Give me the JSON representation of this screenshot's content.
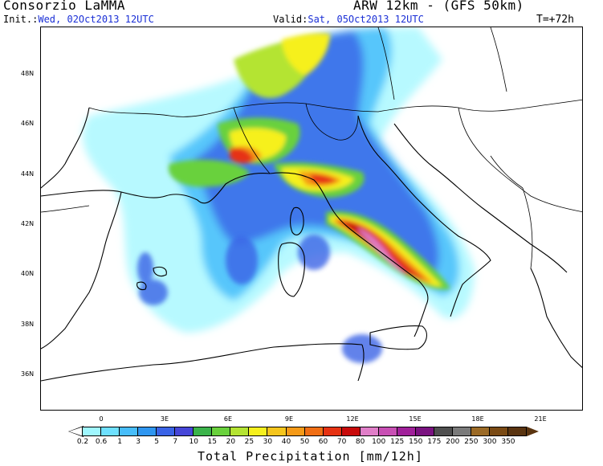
{
  "header": {
    "title_left": "Consorzio LaMMA",
    "title_right": "ARW 12km - (GFS 50km)",
    "init_label": "Init.:",
    "init_value": "Wed, 02Oct2013 12UTC",
    "valid_label": "Valid:",
    "valid_value": "Sat, 05Oct2013 12UTC",
    "timestep": "T=+72h"
  },
  "map": {
    "lat_labels": [
      "48N",
      "46N",
      "44N",
      "42N",
      "40N",
      "38N",
      "36N"
    ],
    "lon_labels": [
      "0",
      "3E",
      "6E",
      "9E",
      "12E",
      "15E",
      "18E",
      "21E"
    ]
  },
  "colorbar": {
    "title": "Total Precipitation [mm/12h]",
    "labels": [
      "0.2",
      "0.6",
      "1",
      "3",
      "5",
      "7",
      "10",
      "15",
      "20",
      "25",
      "30",
      "40",
      "50",
      "60",
      "70",
      "80",
      "100",
      "125",
      "150",
      "175",
      "200",
      "250",
      "300",
      "350"
    ],
    "colors": [
      "#9ff7ff",
      "#6ee0ff",
      "#47bdfa",
      "#2f96f0",
      "#3a63e6",
      "#4646d8",
      "#3bb34a",
      "#69d13c",
      "#b4e432",
      "#f6f01e",
      "#f5c51c",
      "#f59a18",
      "#f06e14",
      "#e63212",
      "#c80a0a",
      "#e07ec8",
      "#c84fb4",
      "#a0209a",
      "#7a1280",
      "#4f4f4f",
      "#7a7a7a",
      "#9b6a26",
      "#7a4a14",
      "#5a3410"
    ]
  }
}
